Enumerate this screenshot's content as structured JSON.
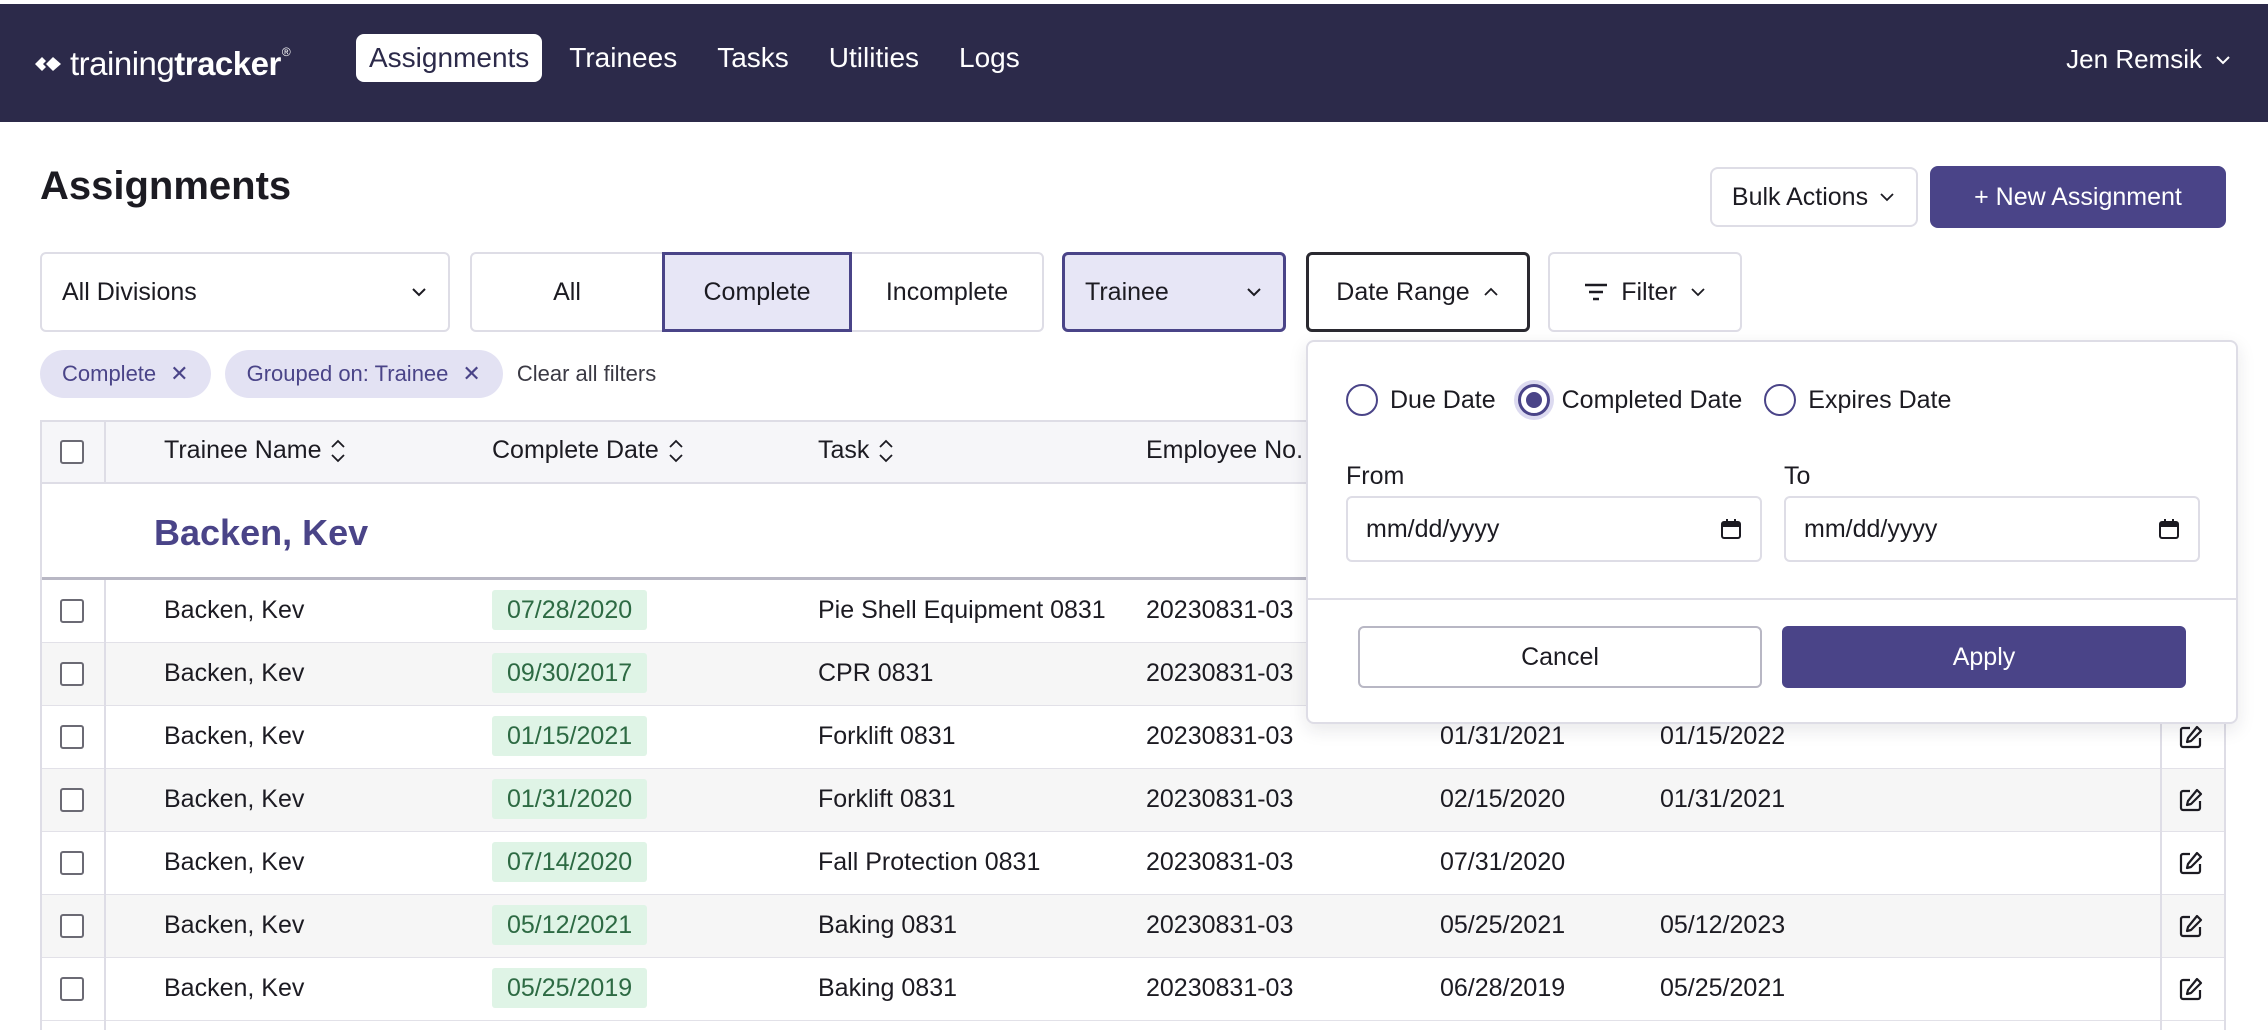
{
  "app": {
    "logo_light": "training",
    "logo_bold": "tracker",
    "logo_reg": "®"
  },
  "nav": {
    "items": [
      "Assignments",
      "Trainees",
      "Tasks",
      "Utilities",
      "Logs"
    ],
    "active": "Assignments"
  },
  "user": {
    "name": "Jen Remsik"
  },
  "page": {
    "title": "Assignments",
    "bulk_actions": "Bulk Actions",
    "new_assignment": "+ New Assignment"
  },
  "filters": {
    "division": "All Divisions",
    "status_tabs": [
      "All",
      "Complete",
      "Incomplete"
    ],
    "status_selected": "Complete",
    "group_by": "Trainee",
    "date_range": "Date Range",
    "filter": "Filter"
  },
  "chips": [
    "Complete",
    "Grouped on: Trainee"
  ],
  "clear_all": "Clear all filters",
  "table": {
    "columns": [
      "Trainee Name",
      "Complete Date",
      "Task",
      "Employee No."
    ],
    "group_title": "Backen, Kev",
    "rows": [
      {
        "name": "Backen, Kev",
        "complete": "07/28/2020",
        "task": "Pie Shell Equipment 0831",
        "emp": "20230831-03",
        "due": "",
        "expires": ""
      },
      {
        "name": "Backen, Kev",
        "complete": "09/30/2017",
        "task": "CPR 0831",
        "emp": "20230831-03",
        "due": "",
        "expires": ""
      },
      {
        "name": "Backen, Kev",
        "complete": "01/15/2021",
        "task": "Forklift 0831",
        "emp": "20230831-03",
        "due": "01/31/2021",
        "expires": "01/15/2022"
      },
      {
        "name": "Backen, Kev",
        "complete": "01/31/2020",
        "task": "Forklift 0831",
        "emp": "20230831-03",
        "due": "02/15/2020",
        "expires": "01/31/2021"
      },
      {
        "name": "Backen, Kev",
        "complete": "07/14/2020",
        "task": "Fall Protection 0831",
        "emp": "20230831-03",
        "due": "07/31/2020",
        "expires": ""
      },
      {
        "name": "Backen, Kev",
        "complete": "05/12/2021",
        "task": "Baking 0831",
        "emp": "20230831-03",
        "due": "05/25/2021",
        "expires": "05/12/2023"
      },
      {
        "name": "Backen, Kev",
        "complete": "05/25/2019",
        "task": "Baking 0831",
        "emp": "20230831-03",
        "due": "06/28/2019",
        "expires": "05/25/2021"
      }
    ]
  },
  "date_popover": {
    "options": [
      "Due Date",
      "Completed Date",
      "Expires Date"
    ],
    "selected": "Completed Date",
    "from_label": "From",
    "to_label": "To",
    "from_value": "mm/dd/yyyy",
    "to_value": "mm/dd/yyyy",
    "cancel": "Cancel",
    "apply": "Apply"
  },
  "colors": {
    "nav_bg": "#2c2a4a",
    "accent": "#4a4488",
    "chip_bg": "#e3e2f3",
    "date_pill_bg": "#dff4e6",
    "date_pill_text": "#2d6a43"
  }
}
